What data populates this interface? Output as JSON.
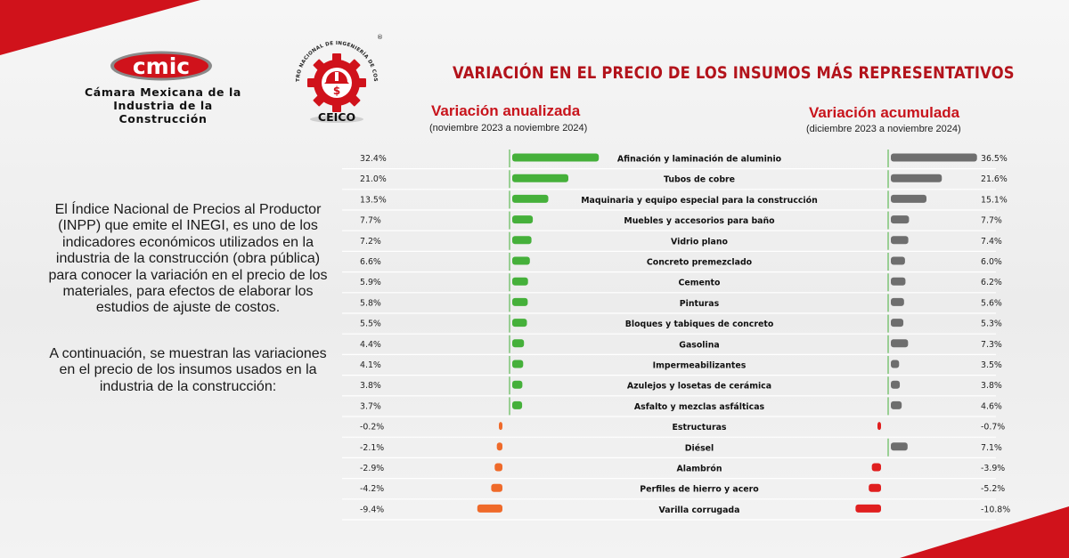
{
  "branding": {
    "cmic_logo_text": "cmic",
    "cmic_name_line1": "Cámara Mexicana de la",
    "cmic_name_line2": "Industria de la Construcción",
    "ceico_ring_text": "CENTRO NACIONAL DE INGENIERÍA DE COSTOS",
    "ceico_label": "CEICO",
    "registered_mark": "®"
  },
  "intro": {
    "paragraph1": "El Índice Nacional de Precios al Productor (INPP) que emite el INEGI, es uno de los indicadores económicos utilizados en la industria de la construcción (obra pública) para conocer la variación en el precio de los materiales, para efectos de elaborar los estudios de ajuste de costos.",
    "paragraph2": "A continuación, se muestran las variaciones en el precio de los insumos usados en la industria de la construcción:"
  },
  "colors": {
    "brand_red": "#d0121b",
    "positive_green": "#45b03a",
    "negative_orange": "#ef6a2a",
    "accumulated_gray": "#6e6e6e",
    "negative_red": "#e01f1f"
  },
  "chart_data": {
    "type": "bar",
    "title": "VARIACIÓN EN EL PRECIO DE LOS INSUMOS MÁS REPRESENTATIVOS",
    "categories": [
      "Afinación y laminación de aluminio",
      "Tubos de cobre",
      "Maquinaria y equipo especial para la construcción",
      "Muebles y accesorios para baño",
      "Vidrio plano",
      "Concreto premezclado",
      "Cemento",
      "Pinturas",
      "Bloques y tabiques de concreto",
      "Gasolina",
      "Impermeabilizantes",
      "Azulejos y losetas de cerámica",
      "Asfalto y mezclas asfálticas",
      "Estructuras",
      "Diésel",
      "Alambrón",
      "Perfiles de hierro y acero",
      "Varilla corrugada"
    ],
    "series": [
      {
        "name": "Variación anualizada",
        "period": "(noviembre 2023 a noviembre 2024)",
        "values": [
          32.4,
          21.0,
          13.5,
          7.7,
          7.2,
          6.6,
          5.9,
          5.8,
          5.5,
          4.4,
          4.1,
          3.8,
          3.7,
          -0.2,
          -2.1,
          -2.9,
          -4.2,
          -9.4
        ],
        "labels": [
          "32.4%",
          "21.0%",
          "13.5%",
          "7.7%",
          "7.2%",
          "6.6%",
          "5.9%",
          "5.8%",
          "5.5%",
          "4.4%",
          "4.1%",
          "3.8%",
          "3.7%",
          "-0.2%",
          "-2.1%",
          "-2.9%",
          "-4.2%",
          "-9.4%"
        ]
      },
      {
        "name": "Variación acumulada",
        "period": "(diciembre 2023 a noviembre 2024)",
        "values": [
          36.5,
          21.6,
          15.1,
          7.7,
          7.4,
          6.0,
          6.2,
          5.6,
          5.3,
          7.3,
          3.5,
          3.8,
          4.6,
          -0.7,
          7.1,
          -3.9,
          -5.2,
          -10.8
        ],
        "labels": [
          "36.5%",
          "21.6%",
          "15.1%",
          "7.7%",
          "7.4%",
          "6.0%",
          "6.2%",
          "5.6%",
          "5.3%",
          "7.3%",
          "3.5%",
          "3.8%",
          "4.6%",
          "-0.7%",
          "7.1%",
          "-3.9%",
          "-5.2%",
          "-10.8%"
        ]
      }
    ]
  }
}
